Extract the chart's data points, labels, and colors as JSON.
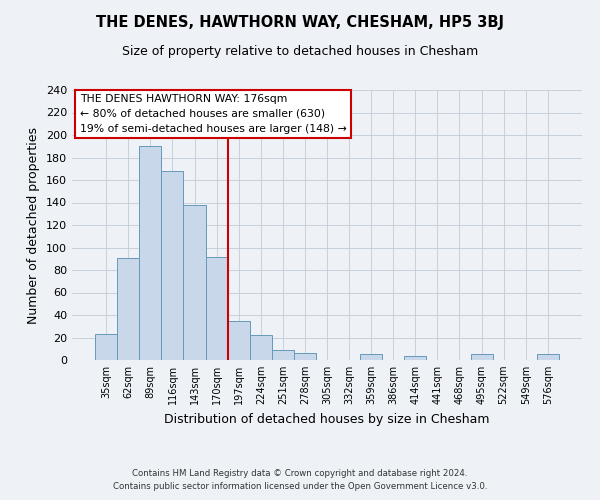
{
  "title": "THE DENES, HAWTHORN WAY, CHESHAM, HP5 3BJ",
  "subtitle": "Size of property relative to detached houses in Chesham",
  "xlabel": "Distribution of detached houses by size in Chesham",
  "ylabel": "Number of detached properties",
  "bar_labels": [
    "35sqm",
    "62sqm",
    "89sqm",
    "116sqm",
    "143sqm",
    "170sqm",
    "197sqm",
    "224sqm",
    "251sqm",
    "278sqm",
    "305sqm",
    "332sqm",
    "359sqm",
    "386sqm",
    "414sqm",
    "441sqm",
    "468sqm",
    "495sqm",
    "522sqm",
    "549sqm",
    "576sqm"
  ],
  "bar_heights": [
    23,
    91,
    190,
    168,
    138,
    92,
    35,
    22,
    9,
    6,
    0,
    0,
    5,
    0,
    4,
    0,
    0,
    5,
    0,
    0,
    5
  ],
  "bar_color": "#c8d8ea",
  "bar_edge_color": "#6699bb",
  "vline_x": 5.5,
  "vline_color": "#cc0000",
  "annotation_title": "THE DENES HAWTHORN WAY: 176sqm",
  "annotation_line1": "← 80% of detached houses are smaller (630)",
  "annotation_line2": "19% of semi-detached houses are larger (148) →",
  "annotation_box_color": "#ffffff",
  "annotation_box_edge": "#cc0000",
  "ylim": [
    0,
    240
  ],
  "yticks": [
    0,
    20,
    40,
    60,
    80,
    100,
    120,
    140,
    160,
    180,
    200,
    220,
    240
  ],
  "footer1": "Contains HM Land Registry data © Crown copyright and database right 2024.",
  "footer2": "Contains public sector information licensed under the Open Government Licence v3.0.",
  "bg_color": "#eef2f7",
  "grid_color": "#c0ccd8"
}
